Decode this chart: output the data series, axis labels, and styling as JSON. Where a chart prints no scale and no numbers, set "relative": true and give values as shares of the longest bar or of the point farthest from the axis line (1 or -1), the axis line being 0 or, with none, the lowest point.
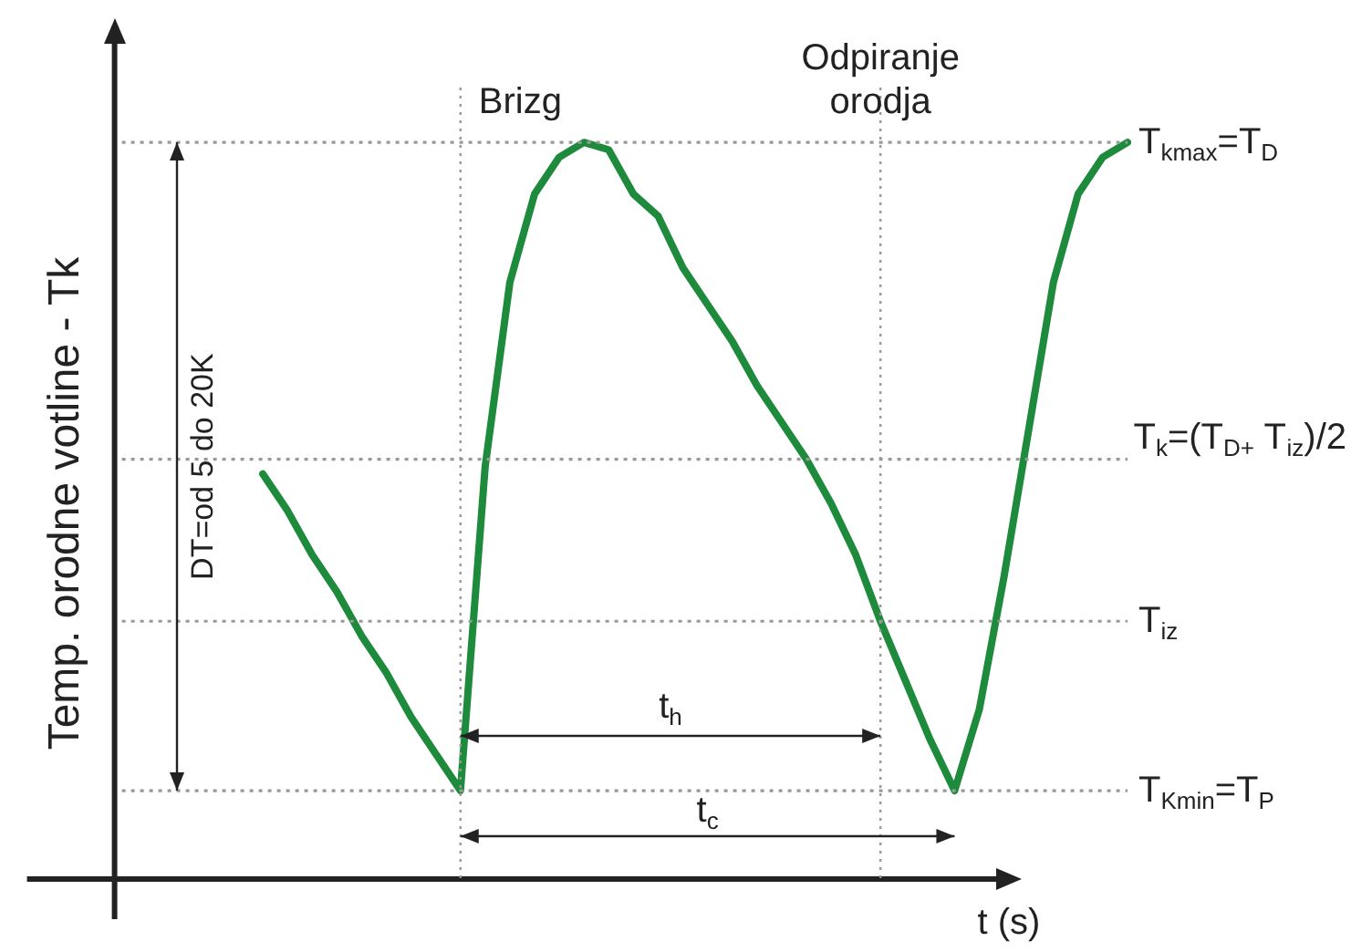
{
  "chart_data": {
    "type": "line",
    "relative": true,
    "ylabel": "Temp. orodne votline - Tk",
    "xlabel": "t (s)",
    "categories": [
      null,
      null,
      null,
      null,
      null,
      null,
      null,
      null,
      null,
      null,
      null,
      null,
      null,
      null,
      null,
      null,
      null,
      null,
      null,
      null,
      null,
      null,
      null,
      null,
      null,
      null,
      null,
      null,
      null,
      null,
      null,
      null,
      null,
      null,
      null,
      null,
      null,
      null,
      null,
      null,
      null,
      null
    ],
    "series": [
      {
        "color": "#1e8a3c",
        "values": [
          null,
          null,
          null,
          null,
          null,
          null,
          0.55,
          0.5,
          0.44,
          0.39,
          0.33,
          0.28,
          0.22,
          0.17,
          0.12,
          0.56,
          0.81,
          0.93,
          0.98,
          1.0,
          0.99,
          0.93,
          0.9,
          0.83,
          0.78,
          0.73,
          0.67,
          0.62,
          0.57,
          0.51,
          0.44,
          0.35,
          0.27,
          0.19,
          0.12,
          0.23,
          0.41,
          0.61,
          0.81,
          0.93,
          0.98,
          1.0
        ]
      }
    ],
    "ref_lines": [
      {
        "axis": "y",
        "value": 1.0,
        "label": "T$_{kmax}$=T$_{D}$",
        "color": "#999999",
        "line_style": "dotted"
      },
      {
        "axis": "y",
        "value": 0.57,
        "label": "T$_{k}$=(T$_{D+}$ T$_{iz}$)/2",
        "color": "#999999",
        "line_style": "dotted"
      },
      {
        "axis": "y",
        "value": 0.35,
        "label": "T$_{iz}$",
        "color": "#999999",
        "line_style": "dotted"
      },
      {
        "axis": "y",
        "value": 0.12,
        "label": "T$_{Kmin}$=T$_{P}$",
        "color": "#999999",
        "line_style": "dotted"
      }
    ],
    "annotations": [
      "Brizg",
      "Odpiranje orodja",
      "t$_{h}$",
      "t$_{c}$",
      "DT=od 5 do 20K"
    ],
    "grid": false,
    "legend": false,
    "marker": "none",
    "line_style": "solid"
  }
}
